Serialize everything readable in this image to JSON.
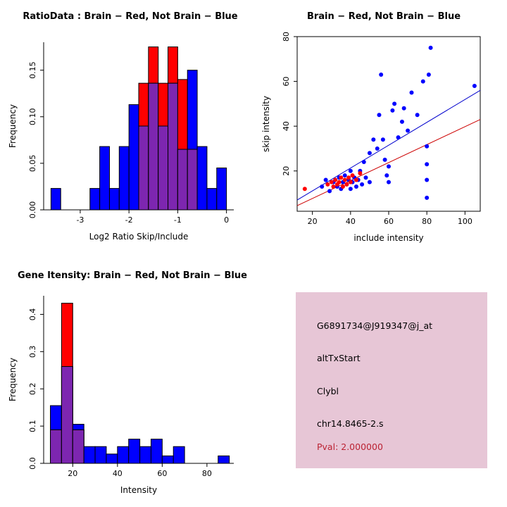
{
  "colors": {
    "blue": "#0000FF",
    "red": "#FF0000",
    "overlap_purple": "#7D26B0",
    "blue_line": "#0000CD",
    "red_line": "#CD0000",
    "info_bg": "#E7C6D6",
    "pval_red": "#BB2233",
    "black": "#000000"
  },
  "chart_data": [
    {
      "id": "ratio_histogram",
      "type": "bar",
      "subtype": "overlaid-histogram",
      "title": "RatioData : Brain − Red, Not Brain − Blue",
      "xlabel": "Log2 Ratio Skip/Include",
      "ylabel": "Frequency",
      "xlim": [
        -3.75,
        0.15
      ],
      "ylim": [
        0,
        0.18
      ],
      "xticks": [
        -3,
        -2,
        -1,
        0
      ],
      "yticks": [
        0,
        0.05,
        0.1,
        0.15
      ],
      "yticklabels": [
        "0.00",
        "0.05",
        "0.10",
        "0.15"
      ],
      "bin_width": 0.2,
      "bin_starts": [
        -3.6,
        -3.4,
        -3.2,
        -3.0,
        -2.8,
        -2.6,
        -2.4,
        -2.2,
        -2.0,
        -1.8,
        -1.6,
        -1.4,
        -1.2,
        -1.0,
        -0.8,
        -0.6,
        -0.4,
        -0.2
      ],
      "overlap_color": "#7D26B0",
      "series": [
        {
          "name": "Not Brain",
          "color": "#0000FF",
          "values": [
            0.023,
            0,
            0,
            0,
            0.023,
            0.068,
            0.023,
            0.068,
            0.113,
            0.09,
            0.136,
            0.09,
            0.136,
            0.065,
            0.15,
            0.068,
            0.023,
            0.045
          ]
        },
        {
          "name": "Brain",
          "color": "#FF0000",
          "values": [
            0,
            0,
            0,
            0,
            0,
            0,
            0,
            0,
            0,
            0.136,
            0.175,
            0.136,
            0.175,
            0.14,
            0.065,
            0,
            0,
            0
          ]
        }
      ]
    },
    {
      "id": "intensity_scatter",
      "type": "scatter",
      "title": "Brain − Red, Not Brain − Blue",
      "xlabel": "include intensity",
      "ylabel": "skip intensity",
      "xlim": [
        12,
        108
      ],
      "ylim": [
        2,
        80
      ],
      "xticks": [
        20,
        40,
        60,
        80,
        100
      ],
      "yticks": [
        20,
        40,
        60,
        80
      ],
      "series": [
        {
          "name": "Not Brain",
          "color": "#0000FF",
          "points": [
            [
              25,
              13
            ],
            [
              27,
              16
            ],
            [
              29,
              11
            ],
            [
              31,
              15
            ],
            [
              33,
              13
            ],
            [
              34,
              17
            ],
            [
              35,
              12
            ],
            [
              36,
              15
            ],
            [
              37,
              18
            ],
            [
              38,
              14
            ],
            [
              39,
              16
            ],
            [
              40,
              12
            ],
            [
              40,
              20
            ],
            [
              41,
              15
            ],
            [
              42,
              17
            ],
            [
              43,
              13
            ],
            [
              44,
              16
            ],
            [
              45,
              20
            ],
            [
              46,
              14
            ],
            [
              47,
              24
            ],
            [
              48,
              17
            ],
            [
              50,
              15
            ],
            [
              50,
              28
            ],
            [
              52,
              34
            ],
            [
              54,
              30
            ],
            [
              55,
              45
            ],
            [
              56,
              63
            ],
            [
              57,
              34
            ],
            [
              58,
              25
            ],
            [
              59,
              18
            ],
            [
              60,
              15
            ],
            [
              60,
              22
            ],
            [
              62,
              47
            ],
            [
              63,
              50
            ],
            [
              65,
              35
            ],
            [
              67,
              42
            ],
            [
              68,
              48
            ],
            [
              70,
              38
            ],
            [
              72,
              55
            ],
            [
              75,
              45
            ],
            [
              78,
              60
            ],
            [
              80,
              8
            ],
            [
              80,
              16
            ],
            [
              80,
              23
            ],
            [
              80,
              31
            ],
            [
              81,
              63
            ],
            [
              82,
              75
            ],
            [
              105,
              58
            ]
          ]
        },
        {
          "name": "Brain",
          "color": "#FF0000",
          "points": [
            [
              16,
              12
            ],
            [
              28,
              14
            ],
            [
              30,
              15
            ],
            [
              31,
              13
            ],
            [
              32,
              16
            ],
            [
              33,
              14
            ],
            [
              34,
              15
            ],
            [
              35,
              17
            ],
            [
              36,
              13
            ],
            [
              37,
              16
            ],
            [
              38,
              14
            ],
            [
              39,
              17
            ],
            [
              40,
              15
            ],
            [
              41,
              18
            ],
            [
              43,
              16
            ],
            [
              45,
              19
            ]
          ]
        }
      ],
      "lines": [
        {
          "name": "not-brain-fit",
          "color": "#0000CD",
          "x1": 12,
          "y1": 7.0,
          "x2": 108,
          "y2": 56
        },
        {
          "name": "brain-fit",
          "color": "#CD0000",
          "x1": 12,
          "y1": 4.5,
          "x2": 108,
          "y2": 43
        }
      ]
    },
    {
      "id": "gene_intensity_histogram",
      "type": "bar",
      "subtype": "overlaid-histogram",
      "title": "Gene Itensity: Brain − Red, Not Brain − Blue",
      "xlabel": "Intensity",
      "ylabel": "Frequency",
      "xlim": [
        7,
        92
      ],
      "ylim": [
        0,
        0.45
      ],
      "xticks": [
        20,
        40,
        60,
        80
      ],
      "yticks": [
        0,
        0.1,
        0.2,
        0.3,
        0.4
      ],
      "yticklabels": [
        "0.0",
        "0.1",
        "0.2",
        "0.3",
        "0.4"
      ],
      "bin_width": 5,
      "bin_starts": [
        10,
        15,
        20,
        25,
        30,
        35,
        40,
        45,
        50,
        55,
        60,
        65,
        70,
        75,
        80,
        85
      ],
      "overlap_color": "#7D26B0",
      "series": [
        {
          "name": "Not Brain",
          "color": "#0000FF",
          "values": [
            0.155,
            0.26,
            0.105,
            0.045,
            0.045,
            0.025,
            0.045,
            0.065,
            0.045,
            0.065,
            0.02,
            0.045,
            0,
            0,
            0,
            0.02
          ]
        },
        {
          "name": "Brain",
          "color": "#FF0000",
          "values": [
            0.09,
            0.43,
            0.09,
            0,
            0,
            0,
            0,
            0,
            0,
            0,
            0,
            0,
            0,
            0,
            0,
            0
          ]
        }
      ]
    }
  ],
  "info_panel": {
    "bg": "#E7C6D6",
    "lines": [
      {
        "text": "G6891734@J919347@j_at",
        "color": "#000000"
      },
      {
        "text": "altTxStart",
        "color": "#000000"
      },
      {
        "text": "Clybl",
        "color": "#000000"
      },
      {
        "text": "chr14.8465-2.s",
        "color": "#000000"
      },
      {
        "text": "Pval: 2.000000",
        "color": "#BB2233"
      }
    ]
  }
}
